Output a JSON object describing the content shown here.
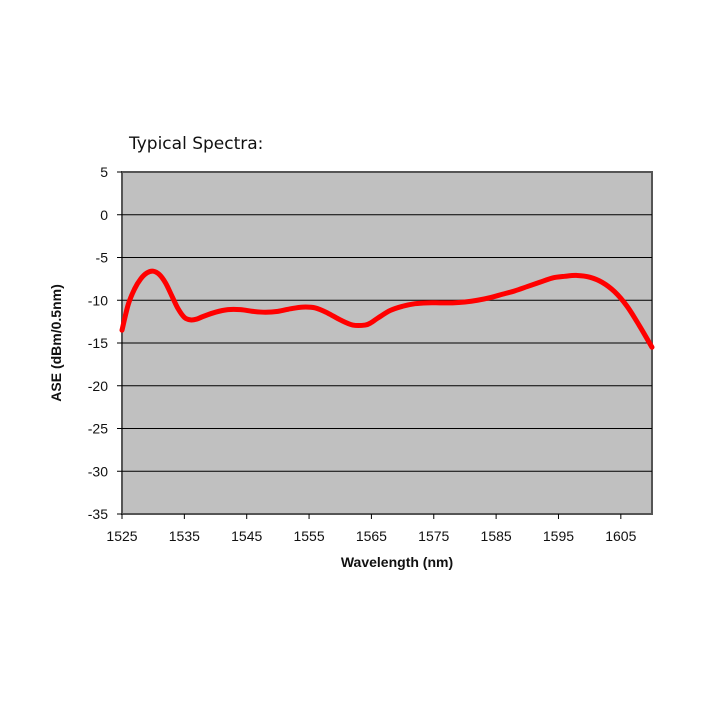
{
  "chart_data": {
    "type": "line",
    "title": "Typical Spectra:",
    "xlabel": "Wavelength (nm)",
    "ylabel": "ASE (dBm/0.5nm)",
    "xlim": [
      1525,
      1610
    ],
    "ylim": [
      -35,
      5
    ],
    "xticks": [
      1525,
      1535,
      1545,
      1555,
      1565,
      1575,
      1585,
      1595,
      1605
    ],
    "yticks": [
      5,
      0,
      -5,
      -10,
      -15,
      -20,
      -25,
      -30,
      -35
    ],
    "grid": "horizontal",
    "plot_background": "#c0c0c0",
    "series": [
      {
        "color": "#ff0000",
        "x": [
          1525,
          1526,
          1527,
          1528,
          1529,
          1530,
          1531,
          1532,
          1533,
          1534,
          1535,
          1536,
          1537,
          1538,
          1540,
          1542,
          1544,
          1546,
          1548,
          1550,
          1552,
          1554,
          1556,
          1558,
          1560,
          1562,
          1564,
          1565,
          1566,
          1568,
          1570,
          1572,
          1574,
          1576,
          1578,
          1580,
          1582,
          1584,
          1586,
          1588,
          1590,
          1592,
          1594,
          1596,
          1598,
          1600,
          1602,
          1604,
          1606,
          1608,
          1610
        ],
        "y": [
          -13.5,
          -10.5,
          -8.7,
          -7.5,
          -6.8,
          -6.6,
          -7.0,
          -8.0,
          -9.5,
          -11.0,
          -12.0,
          -12.3,
          -12.2,
          -11.9,
          -11.4,
          -11.1,
          -11.1,
          -11.3,
          -11.4,
          -11.3,
          -11.0,
          -10.8,
          -10.9,
          -11.5,
          -12.3,
          -12.9,
          -12.9,
          -12.6,
          -12.1,
          -11.2,
          -10.7,
          -10.4,
          -10.3,
          -10.3,
          -10.3,
          -10.2,
          -10.0,
          -9.7,
          -9.3,
          -8.9,
          -8.4,
          -7.9,
          -7.4,
          -7.2,
          -7.1,
          -7.3,
          -7.9,
          -9.0,
          -10.7,
          -13.0,
          -15.5
        ]
      }
    ]
  }
}
